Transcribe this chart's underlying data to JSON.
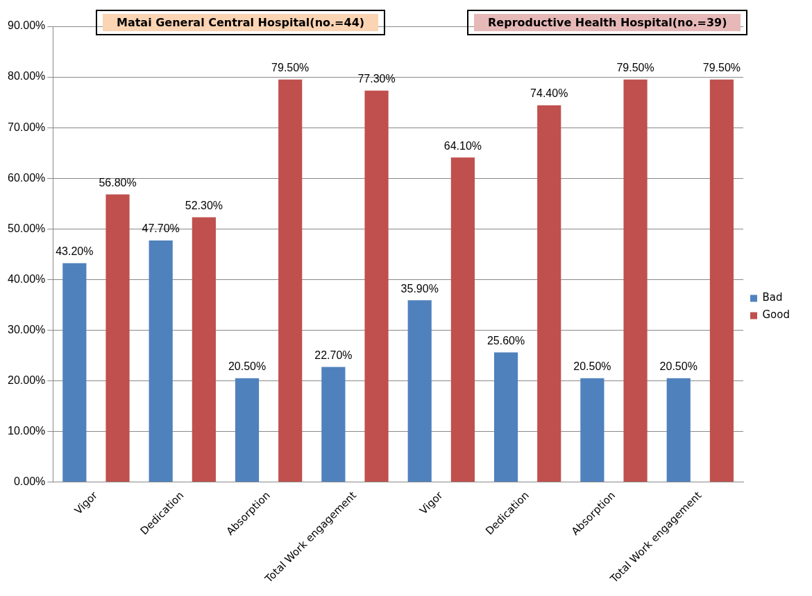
{
  "chart_data": {
    "type": "bar",
    "categories": [
      "Vigor",
      "Dedication",
      "Absorption",
      "Total Work engagement",
      "Vigor",
      "Dedication",
      "Absorption",
      "Total Work engagement"
    ],
    "series": [
      {
        "name": "Bad",
        "color": "#4f81bd",
        "values": [
          43.2,
          47.7,
          20.5,
          22.7,
          35.9,
          25.6,
          20.5,
          20.5
        ],
        "value_labels": [
          "43.20%",
          "47.70%",
          "20.50%",
          "22.70%",
          "35.90%",
          "25.60%",
          "20.50%",
          "20.50%"
        ]
      },
      {
        "name": "Good",
        "color": "#c0504d",
        "values": [
          56.8,
          52.3,
          79.5,
          77.3,
          64.1,
          74.4,
          79.5,
          79.5
        ],
        "value_labels": [
          "56.80%",
          "52.30%",
          "79.50%",
          "77.30%",
          "64.10%",
          "74.40%",
          "79.50%",
          "79.50%"
        ]
      }
    ],
    "ylim": [
      0,
      90
    ],
    "yticks": [
      {
        "value": 0,
        "label": "0.00%"
      },
      {
        "value": 10,
        "label": "10.00%"
      },
      {
        "value": 20,
        "label": "20.00%"
      },
      {
        "value": 30,
        "label": "30.00%"
      },
      {
        "value": 40,
        "label": "40.00%"
      },
      {
        "value": 50,
        "label": "50.00%"
      },
      {
        "value": 60,
        "label": "60.00%"
      },
      {
        "value": 70,
        "label": "70.00%"
      },
      {
        "value": 80,
        "label": "80.00%"
      },
      {
        "value": 90,
        "label": "90.00%"
      }
    ],
    "grid": "y",
    "legend": "right",
    "annotations": [
      "Matai General Central Hospital(no.=44)",
      "Reproductive Health Hospital(no.=39)"
    ]
  }
}
